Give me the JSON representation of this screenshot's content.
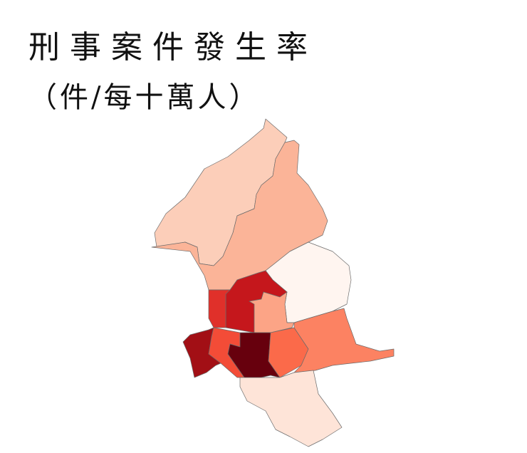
{
  "title": {
    "line1": "刑事案件發生率",
    "line2": "（件/每十萬人）"
  },
  "map": {
    "type": "choropleth",
    "color_scale": "Reds",
    "stroke_color": "#6b6b6b",
    "legend": "none",
    "region_fills": [
      "#fcceb9",
      "#fbb498",
      "#fff5f0",
      "#c5171c",
      "#e0302a",
      "#fca486",
      "#a20f15",
      "#f34c37",
      "#67000d",
      "#fb6a4a",
      "#fc8262",
      "#fee4d8"
    ]
  }
}
